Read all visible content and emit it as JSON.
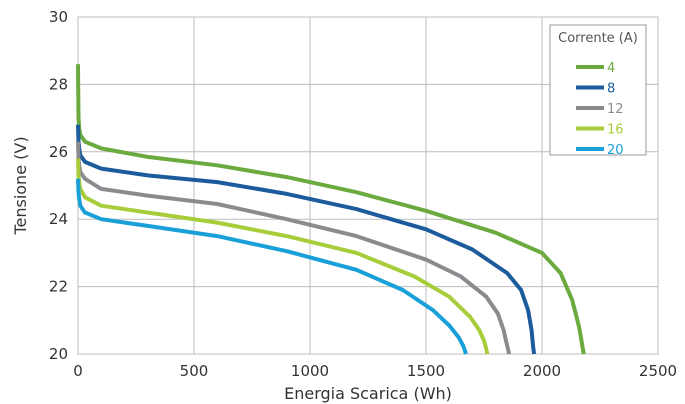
{
  "chart_data": {
    "type": "line",
    "xlabel": "Energia Scarica (Wh)",
    "ylabel": "Tensione (V)",
    "xlim": [
      0,
      2500
    ],
    "ylim": [
      20,
      30
    ],
    "xticks": [
      "0",
      "500",
      "1000",
      "1500",
      "2000",
      "2500"
    ],
    "yticks": [
      "20",
      "22",
      "24",
      "26",
      "28",
      "30"
    ],
    "grid": true,
    "legend": {
      "title": "Corrente (A)",
      "placement": "top-right"
    },
    "series": [
      {
        "name": "4",
        "color": "#6aaa3f",
        "x": [
          0,
          2,
          5,
          10,
          30,
          100,
          300,
          600,
          900,
          1200,
          1500,
          1800,
          2000,
          2080,
          2130,
          2160,
          2175,
          2180
        ],
        "y": [
          28.6,
          27.0,
          26.7,
          26.5,
          26.3,
          26.1,
          25.85,
          25.6,
          25.25,
          24.8,
          24.25,
          23.6,
          23.0,
          22.4,
          21.6,
          20.8,
          20.2,
          20.0
        ]
      },
      {
        "name": "8",
        "color": "#1c5c9c",
        "x": [
          0,
          2,
          5,
          10,
          30,
          100,
          300,
          600,
          900,
          1200,
          1500,
          1700,
          1850,
          1910,
          1940,
          1955,
          1962,
          1966
        ],
        "y": [
          26.8,
          26.3,
          26.1,
          25.9,
          25.7,
          25.5,
          25.3,
          25.1,
          24.75,
          24.3,
          23.7,
          23.1,
          22.4,
          21.9,
          21.3,
          20.7,
          20.2,
          20.0
        ]
      },
      {
        "name": "12",
        "color": "#8a8b8f",
        "x": [
          0,
          2,
          5,
          10,
          30,
          100,
          300,
          600,
          900,
          1200,
          1500,
          1650,
          1760,
          1810,
          1835,
          1848,
          1855,
          1858
        ],
        "y": [
          26.3,
          25.8,
          25.6,
          25.4,
          25.2,
          24.9,
          24.7,
          24.45,
          24.0,
          23.5,
          22.8,
          22.3,
          21.7,
          21.2,
          20.7,
          20.3,
          20.1,
          20.0
        ]
      },
      {
        "name": "16",
        "color": "#a8cd3a",
        "x": [
          0,
          2,
          5,
          10,
          30,
          100,
          300,
          600,
          900,
          1200,
          1450,
          1600,
          1690,
          1730,
          1750,
          1760,
          1764
        ],
        "y": [
          25.8,
          25.3,
          25.1,
          24.9,
          24.65,
          24.4,
          24.2,
          23.9,
          23.5,
          23.0,
          22.3,
          21.7,
          21.1,
          20.7,
          20.4,
          20.15,
          20.0
        ]
      },
      {
        "name": "20",
        "color": "#1aa0d8",
        "x": [
          0,
          2,
          5,
          10,
          30,
          100,
          300,
          600,
          900,
          1200,
          1400,
          1530,
          1600,
          1640,
          1660,
          1668,
          1672
        ],
        "y": [
          25.2,
          24.8,
          24.6,
          24.4,
          24.2,
          24.0,
          23.8,
          23.5,
          23.05,
          22.5,
          21.9,
          21.3,
          20.85,
          20.5,
          20.25,
          20.1,
          20.0
        ]
      }
    ]
  }
}
